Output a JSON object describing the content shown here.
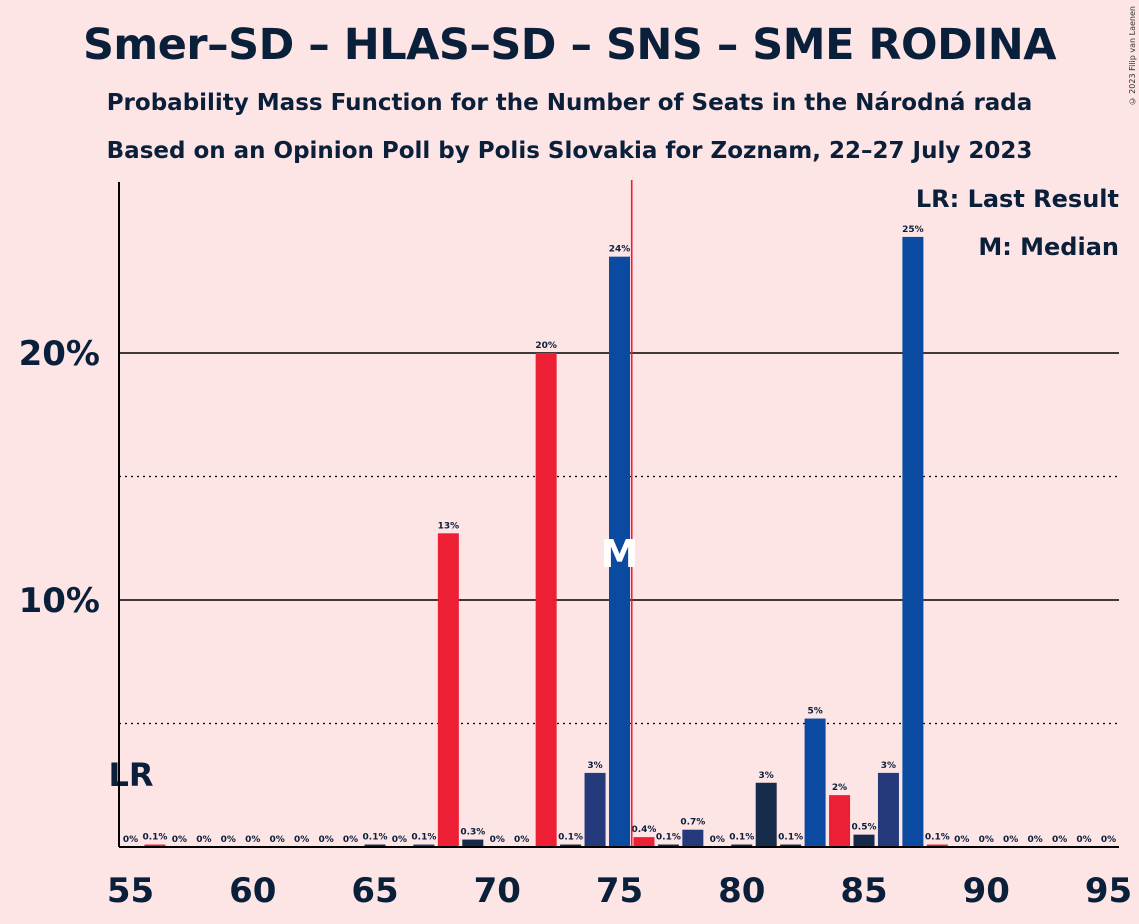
{
  "title": "Smer–SD – HLAS–SD – SNS – SME RODINA",
  "subtitle_1": "Probability Mass Function for the Number of Seats in the Národná rada",
  "subtitle_2": "Based on an Opinion Poll by Polis Slovakia for Zoznam, 22–27 July 2023",
  "copyright": "© 2023 Filip van Laenen",
  "legend": {
    "last_result": "LR: Last Result",
    "median": "M: Median"
  },
  "chart_data": {
    "type": "bar",
    "x": [
      55,
      56,
      57,
      58,
      59,
      60,
      61,
      62,
      63,
      64,
      65,
      66,
      67,
      68,
      69,
      70,
      71,
      72,
      73,
      74,
      75,
      76,
      77,
      78,
      79,
      80,
      81,
      82,
      83,
      84,
      85,
      86,
      87,
      88,
      89,
      90,
      91,
      92,
      93,
      94,
      95
    ],
    "values": [
      0,
      0.1,
      0,
      0,
      0,
      0,
      0,
      0,
      0,
      0,
      0.1,
      0,
      0.1,
      12.7,
      0.3,
      0,
      0,
      20.0,
      0.1,
      3.0,
      23.9,
      0.4,
      0.1,
      0.7,
      0,
      0.1,
      2.6,
      0.1,
      5.2,
      2.1,
      0.5,
      3.0,
      24.7,
      0.1,
      0,
      0,
      0,
      0,
      0,
      0,
      0
    ],
    "labels": [
      "0%",
      "0.1%",
      "0%",
      "0%",
      "0%",
      "0%",
      "0%",
      "0%",
      "0%",
      "0%",
      "0.1%",
      "0%",
      "0.1%",
      "13%",
      "0.3%",
      "0%",
      "0%",
      "20%",
      "0.1%",
      "3%",
      "24%",
      "0.4%",
      "0.1%",
      "0.7%",
      "0%",
      "0.1%",
      "3%",
      "0.1%",
      "5%",
      "2%",
      "0.5%",
      "3%",
      "25%",
      "0.1%",
      "0%",
      "0%",
      "0%",
      "0%",
      "0%",
      "0%",
      "0%"
    ],
    "colors": [
      "#0A1F3A",
      "#EC1F35",
      "#0A1F3A",
      "#0A1F3A",
      "#0A1F3A",
      "#0A1F3A",
      "#0A1F3A",
      "#0A1F3A",
      "#0A1F3A",
      "#0A1F3A",
      "#16294A",
      "#0A1F3A",
      "#1F3C7B",
      "#EC1F35",
      "#16294A",
      "#0A1F3A",
      "#0A1F3A",
      "#EC1F35",
      "#16294A",
      "#243A7A",
      "#0A4AA0",
      "#EC1F35",
      "#16294A",
      "#243A7A",
      "#0A1F3A",
      "#16294A",
      "#162A4A",
      "#16294A",
      "#0A4AA0",
      "#EC1F35",
      "#16294A",
      "#243A7A",
      "#0A4AA0",
      "#EC1F35",
      "#0A1F3A",
      "#0A1F3A",
      "#0A1F3A",
      "#0A1F3A",
      "#0A1F3A",
      "#0A1F3A",
      "#0A1F3A"
    ],
    "x_ticks": [
      "55",
      "60",
      "65",
      "70",
      "75",
      "80",
      "85",
      "90",
      "95"
    ],
    "x_tick_values": [
      55,
      60,
      65,
      70,
      75,
      80,
      85,
      90,
      95
    ],
    "y_ticks": [
      "10%",
      "20%"
    ],
    "y_tick_values": [
      10,
      20
    ],
    "y_dotted_values": [
      5,
      15
    ],
    "ylim": [
      0,
      27
    ],
    "last_result": 55,
    "last_result_label": "LR",
    "median": 75,
    "median_label": "M",
    "median_line_color": "#EC1F35",
    "grid": true,
    "legend_position": "top-right"
  }
}
